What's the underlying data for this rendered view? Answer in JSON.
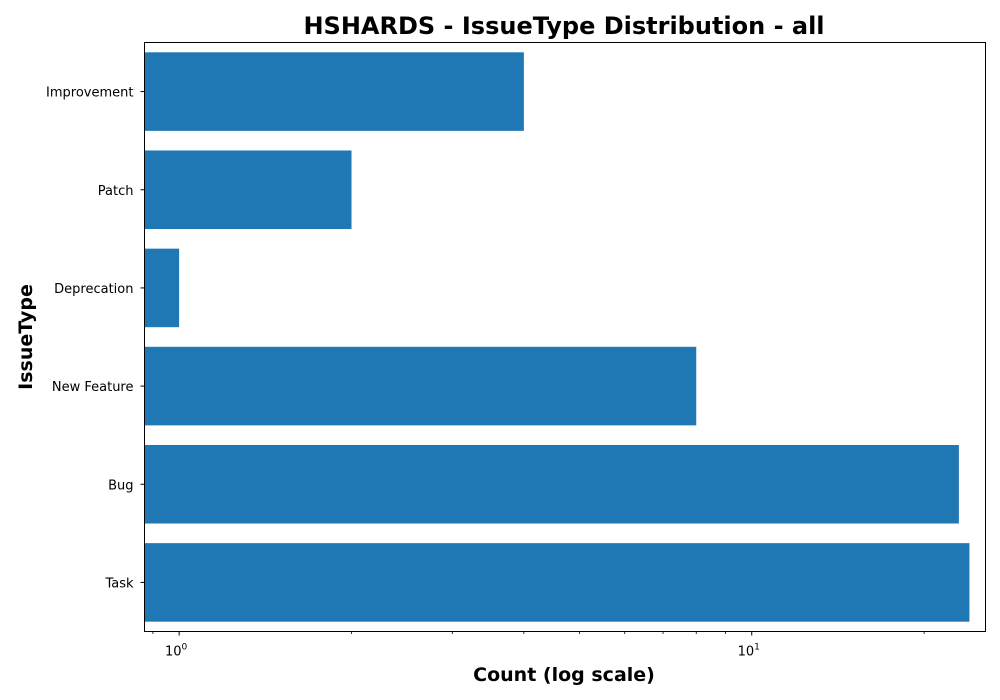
{
  "chart_data": {
    "type": "bar",
    "orientation": "horizontal",
    "title": "HSHARDS - IssueType Distribution - all",
    "xlabel": "Count (log scale)",
    "ylabel": "IssueType",
    "x_scale": "log",
    "xlim": [
      0.87,
      25.6
    ],
    "grid": false,
    "x_ticks": [
      {
        "value": 1,
        "base": "10",
        "exp": "0"
      },
      {
        "value": 10,
        "base": "10",
        "exp": "1"
      }
    ],
    "categories": [
      "Improvement",
      "Patch",
      "Deprecation",
      "New Feature",
      "Bug",
      "Task"
    ],
    "values": [
      4,
      2,
      1,
      8,
      23,
      24
    ],
    "colors": {
      "bar": "#1f77b4",
      "axis": "#000000",
      "background": "#ffffff"
    }
  }
}
